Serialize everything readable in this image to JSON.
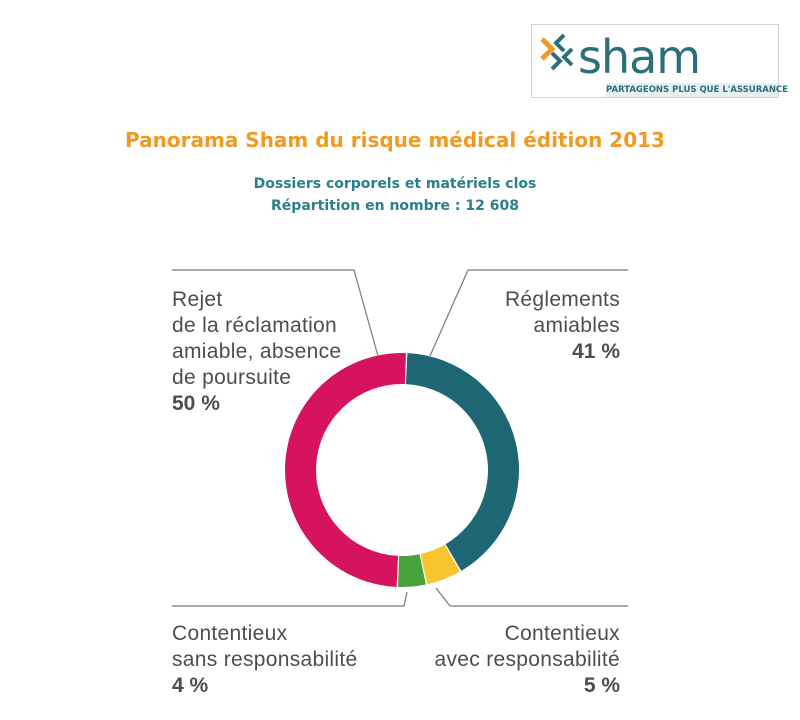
{
  "logo": {
    "word": "sham",
    "tagline": "PARTAGEONS PLUS QUE L'ASSURANCE",
    "colors": {
      "teal": "#2c6e7a",
      "orange": "#f09a24"
    }
  },
  "title": "Panorama Sham du risque médical édition 2013",
  "subtitle_line1": "Dossiers corporels et matériels clos",
  "subtitle_line2": "Répartition en nombre : 12 608",
  "chart_data": {
    "type": "pie",
    "style": "donut",
    "total": 12608,
    "slices": [
      {
        "label_lines": [
          "Réglements",
          "amiables"
        ],
        "value": 41,
        "value_label": "41 %",
        "color": "#1f6675"
      },
      {
        "label_lines": [
          "Contentieux",
          "avec responsabilité"
        ],
        "value": 5,
        "value_label": "5 %",
        "color": "#f8c531"
      },
      {
        "label_lines": [
          "Contentieux",
          "sans responsabilité"
        ],
        "value": 4,
        "value_label": "4 %",
        "color": "#4aa23d"
      },
      {
        "label_lines": [
          "Rejet",
          "de la réclamation",
          "amiable, absence",
          "de poursuite"
        ],
        "value": 50,
        "value_label": "50 %",
        "color": "#d6135f"
      }
    ]
  }
}
